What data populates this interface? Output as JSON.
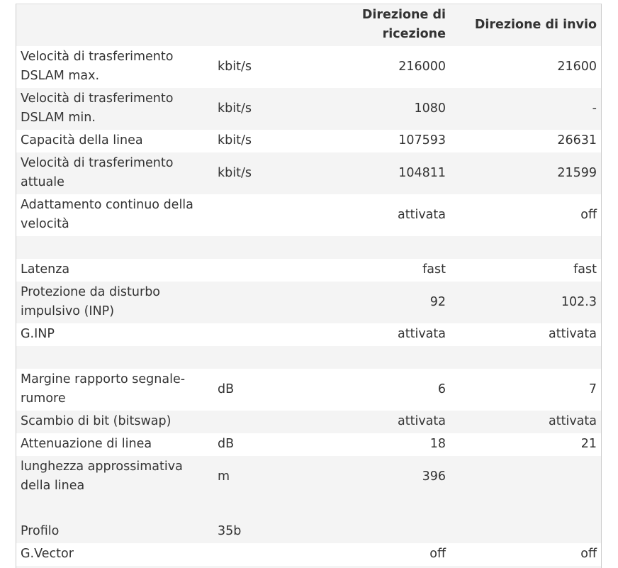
{
  "table": {
    "header": [
      null,
      null,
      "Direzione di ricezione",
      "Direzione di invio"
    ],
    "rows": [
      [
        "Velocità di trasferimento DSLAM max.",
        "kbit/s",
        "216000",
        "21600"
      ],
      [
        "Velocità di trasferimento DSLAM min.",
        "kbit/s",
        "1080",
        "-"
      ],
      [
        "Capacità della linea",
        "kbit/s",
        "107593",
        "26631"
      ],
      [
        "Velocità di trasferimento attuale",
        "kbit/s",
        "104811",
        "21599"
      ],
      [
        "Adattamento continuo della velocità",
        null,
        "attivata",
        "off"
      ],
      null,
      [
        "Latenza",
        null,
        "fast",
        "fast"
      ],
      [
        "Protezione da disturbo impulsivo (INP)",
        null,
        "92",
        "102.3"
      ],
      [
        "G.INP",
        null,
        "attivata",
        "attivata"
      ],
      null,
      [
        "Margine rapporto segnale-rumore",
        "dB",
        "6",
        "7"
      ],
      [
        "Scambio di bit (bitswap)",
        null,
        "attivata",
        "attivata"
      ],
      [
        "Attenuazione di linea",
        "dB",
        "18",
        "21"
      ],
      [
        "lunghezza approssimativa della linea",
        "m",
        "396",
        null
      ],
      null,
      [
        "Profilo",
        "35b",
        null,
        null
      ],
      [
        "G.Vector",
        null,
        "off",
        "off"
      ],
      null
    ]
  }
}
